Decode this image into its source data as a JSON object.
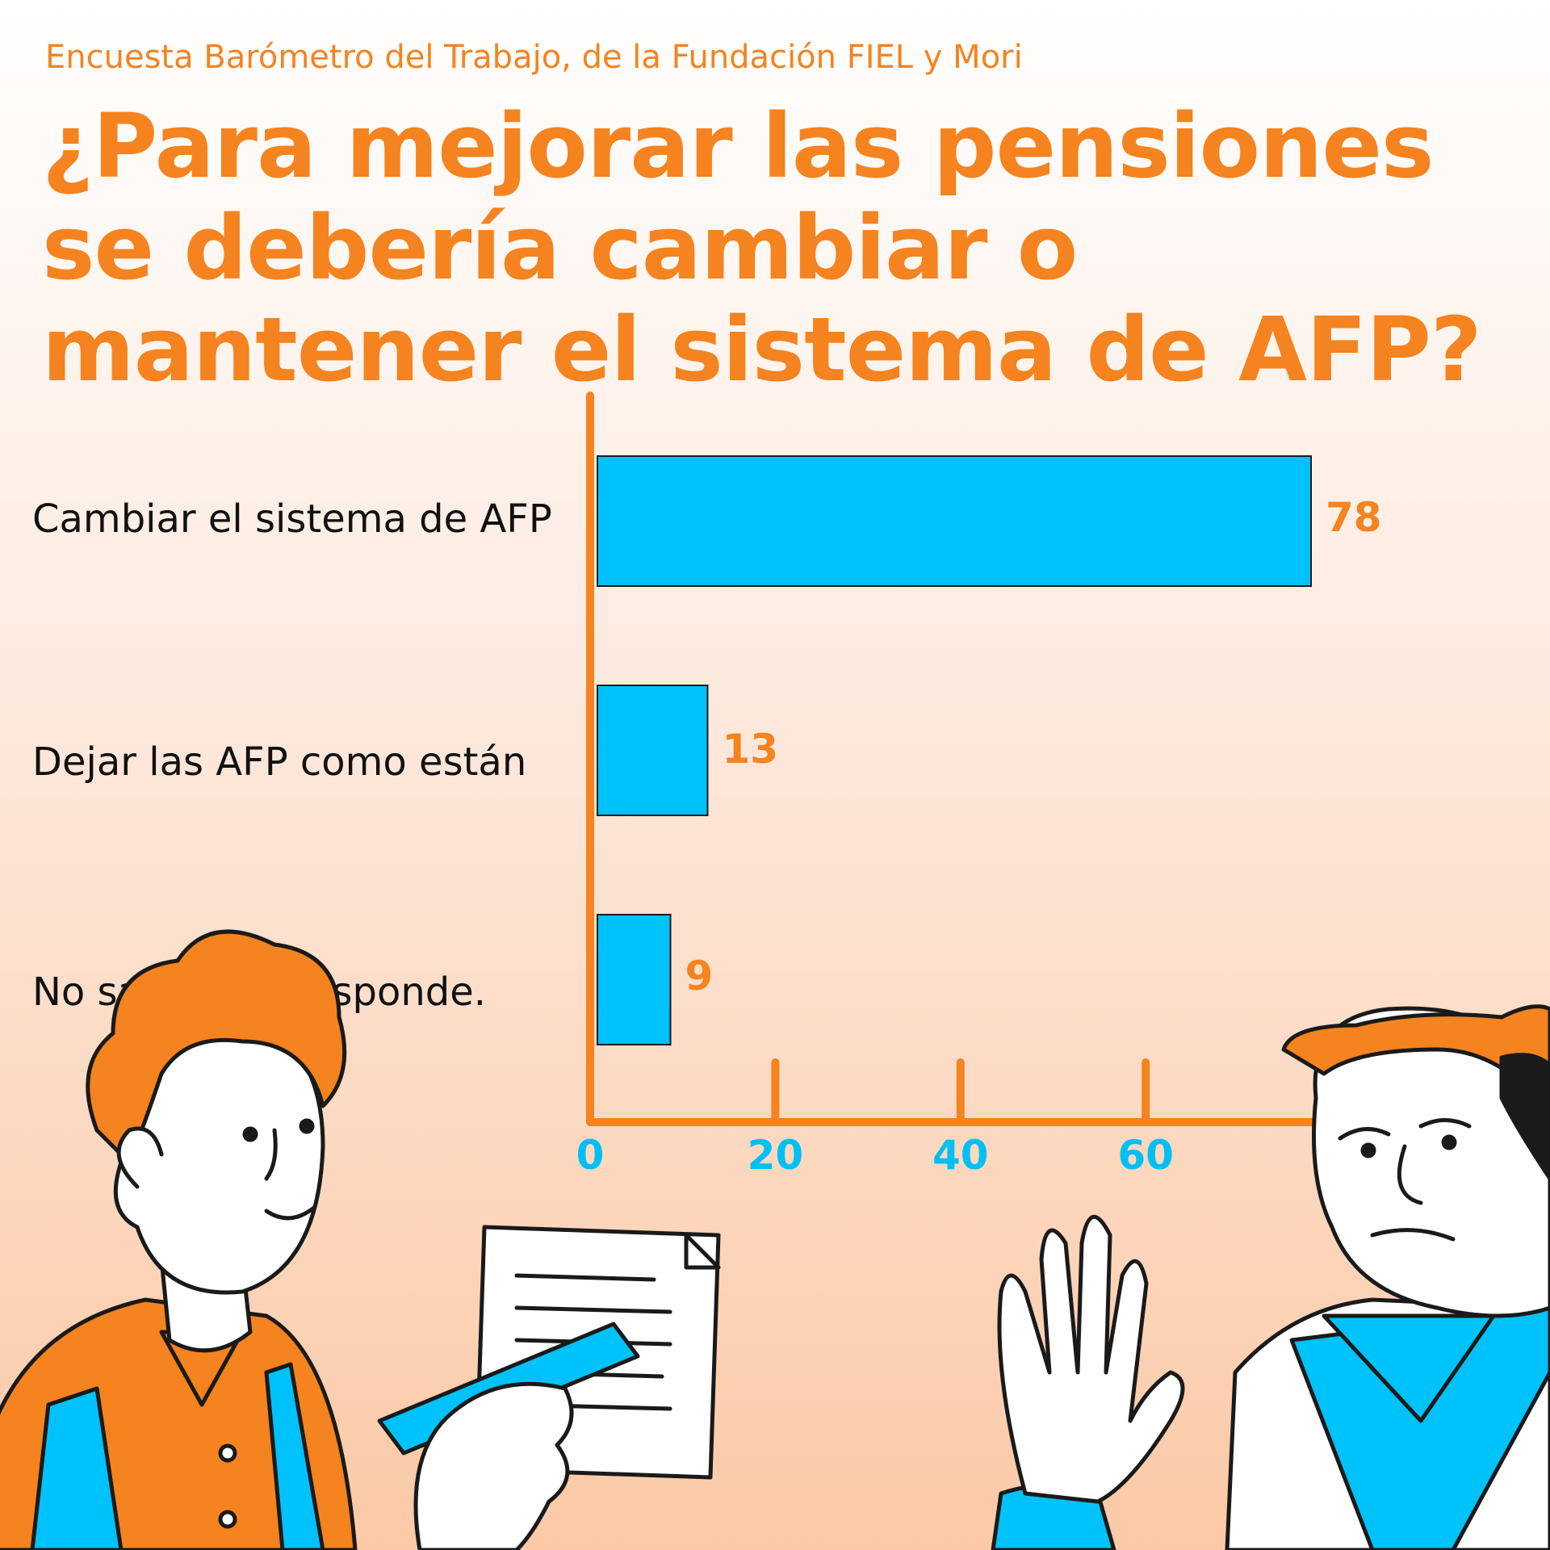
{
  "chart_data": {
    "type": "bar",
    "orientation": "horizontal",
    "subtitle": "Encuesta Barómetro del Trabajo, de la Fundación FIEL y Mori",
    "title": "¿Para mejorar las pensiones se debería cambiar o mantener el sistema de AFP?",
    "categories": [
      "Cambiar el sistema de AFP",
      "Dejar las AFP como están",
      "No sabe - No responde."
    ],
    "values": [
      78,
      13,
      9
    ],
    "value_labels": [
      "78",
      "13",
      "9"
    ],
    "xticks": [
      "0",
      "20",
      "40",
      "60"
    ],
    "xlim": [
      0,
      80
    ],
    "grid": false,
    "colors": {
      "bar": "#00c2fa",
      "axis": "#f5831f",
      "title": "#f5831f",
      "tick": "#00bff5"
    }
  }
}
